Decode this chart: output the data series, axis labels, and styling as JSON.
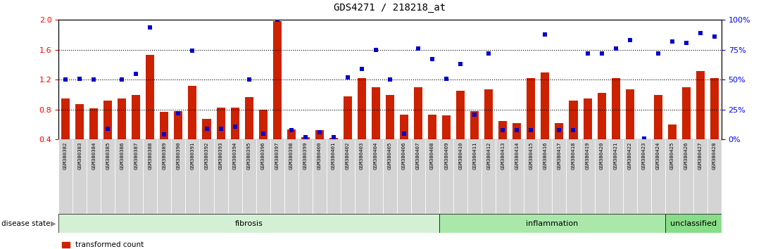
{
  "title": "GDS4271 / 218218_at",
  "samples": [
    "GSM380382",
    "GSM380383",
    "GSM380384",
    "GSM380385",
    "GSM380386",
    "GSM380387",
    "GSM380388",
    "GSM380389",
    "GSM380390",
    "GSM380391",
    "GSM380392",
    "GSM380393",
    "GSM380394",
    "GSM380395",
    "GSM380396",
    "GSM380397",
    "GSM380398",
    "GSM380399",
    "GSM380400",
    "GSM380401",
    "GSM380402",
    "GSM380403",
    "GSM380404",
    "GSM380405",
    "GSM380406",
    "GSM380407",
    "GSM380408",
    "GSM380409",
    "GSM380410",
    "GSM380411",
    "GSM380412",
    "GSM380413",
    "GSM380414",
    "GSM380415",
    "GSM380416",
    "GSM380417",
    "GSM380418",
    "GSM380419",
    "GSM380420",
    "GSM380421",
    "GSM380422",
    "GSM380423",
    "GSM380424",
    "GSM380425",
    "GSM380426",
    "GSM380427",
    "GSM380428"
  ],
  "bar_values": [
    0.95,
    0.87,
    0.82,
    0.92,
    0.95,
    1.0,
    1.53,
    0.77,
    0.78,
    1.12,
    0.68,
    0.83,
    0.83,
    0.97,
    0.8,
    1.98,
    0.53,
    0.43,
    0.52,
    0.42,
    0.98,
    1.22,
    1.1,
    1.0,
    0.73,
    1.1,
    0.73,
    0.72,
    1.05,
    0.78,
    1.07,
    0.65,
    0.62,
    1.22,
    1.3,
    0.62,
    0.92,
    0.95,
    1.02,
    1.22,
    1.07,
    0.37,
    1.0,
    0.6,
    1.1,
    1.32,
    1.22
  ],
  "dot_percentiles": [
    50,
    51,
    50,
    9,
    50,
    55,
    94,
    4,
    22,
    74,
    9,
    9,
    11,
    50,
    5,
    100,
    8,
    2,
    6,
    2,
    52,
    59,
    75,
    50,
    5,
    76,
    67,
    51,
    63,
    21,
    72,
    8,
    8,
    8,
    88,
    8,
    8,
    72,
    72,
    76,
    83,
    1,
    72,
    82,
    81,
    89,
    86
  ],
  "groups": [
    {
      "label": "fibrosis",
      "start": 0,
      "end": 27
    },
    {
      "label": "inflammation",
      "start": 27,
      "end": 43
    },
    {
      "label": "unclassified",
      "start": 43,
      "end": 47
    }
  ],
  "group_colors": [
    "#d4f0d4",
    "#aae8aa",
    "#88dd88"
  ],
  "bar_color": "#cc2200",
  "dot_color": "#0000cc",
  "ymin": 0.4,
  "ymax": 2.0,
  "yticks_left": [
    0.4,
    0.8,
    1.2,
    1.6,
    2.0
  ],
  "pmin": 0,
  "pmax": 100,
  "yticks_right": [
    0,
    25,
    50,
    75,
    100
  ],
  "dotted_lines_pct": [
    25,
    50,
    75
  ],
  "xtick_bg": "#d8d8d8"
}
